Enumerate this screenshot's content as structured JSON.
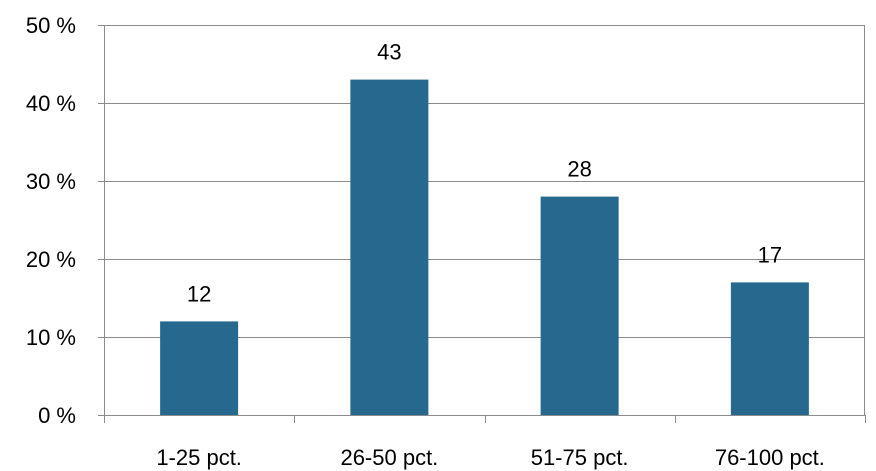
{
  "chart_data": {
    "type": "bar",
    "title": "",
    "xlabel": "",
    "ylabel": "",
    "categories": [
      "1-25 pct.",
      "26-50 pct.",
      "51-75 pct.",
      "76-100 pct."
    ],
    "values": [
      12,
      43,
      28,
      17
    ],
    "data_labels": [
      "12",
      "43",
      "28",
      "17"
    ],
    "ylim": [
      0,
      50
    ],
    "yticks": [
      0,
      10,
      20,
      30,
      40,
      50
    ],
    "ytick_labels": [
      "0 %",
      "10 %",
      "20 %",
      "30 %",
      "40 %",
      "50 %"
    ],
    "grid": true,
    "legend": "none",
    "colors": {
      "bar": "#27688F",
      "grid": "#8C8C8C",
      "axis": "#8C8C8C",
      "frame": "#8C8C8C"
    }
  }
}
